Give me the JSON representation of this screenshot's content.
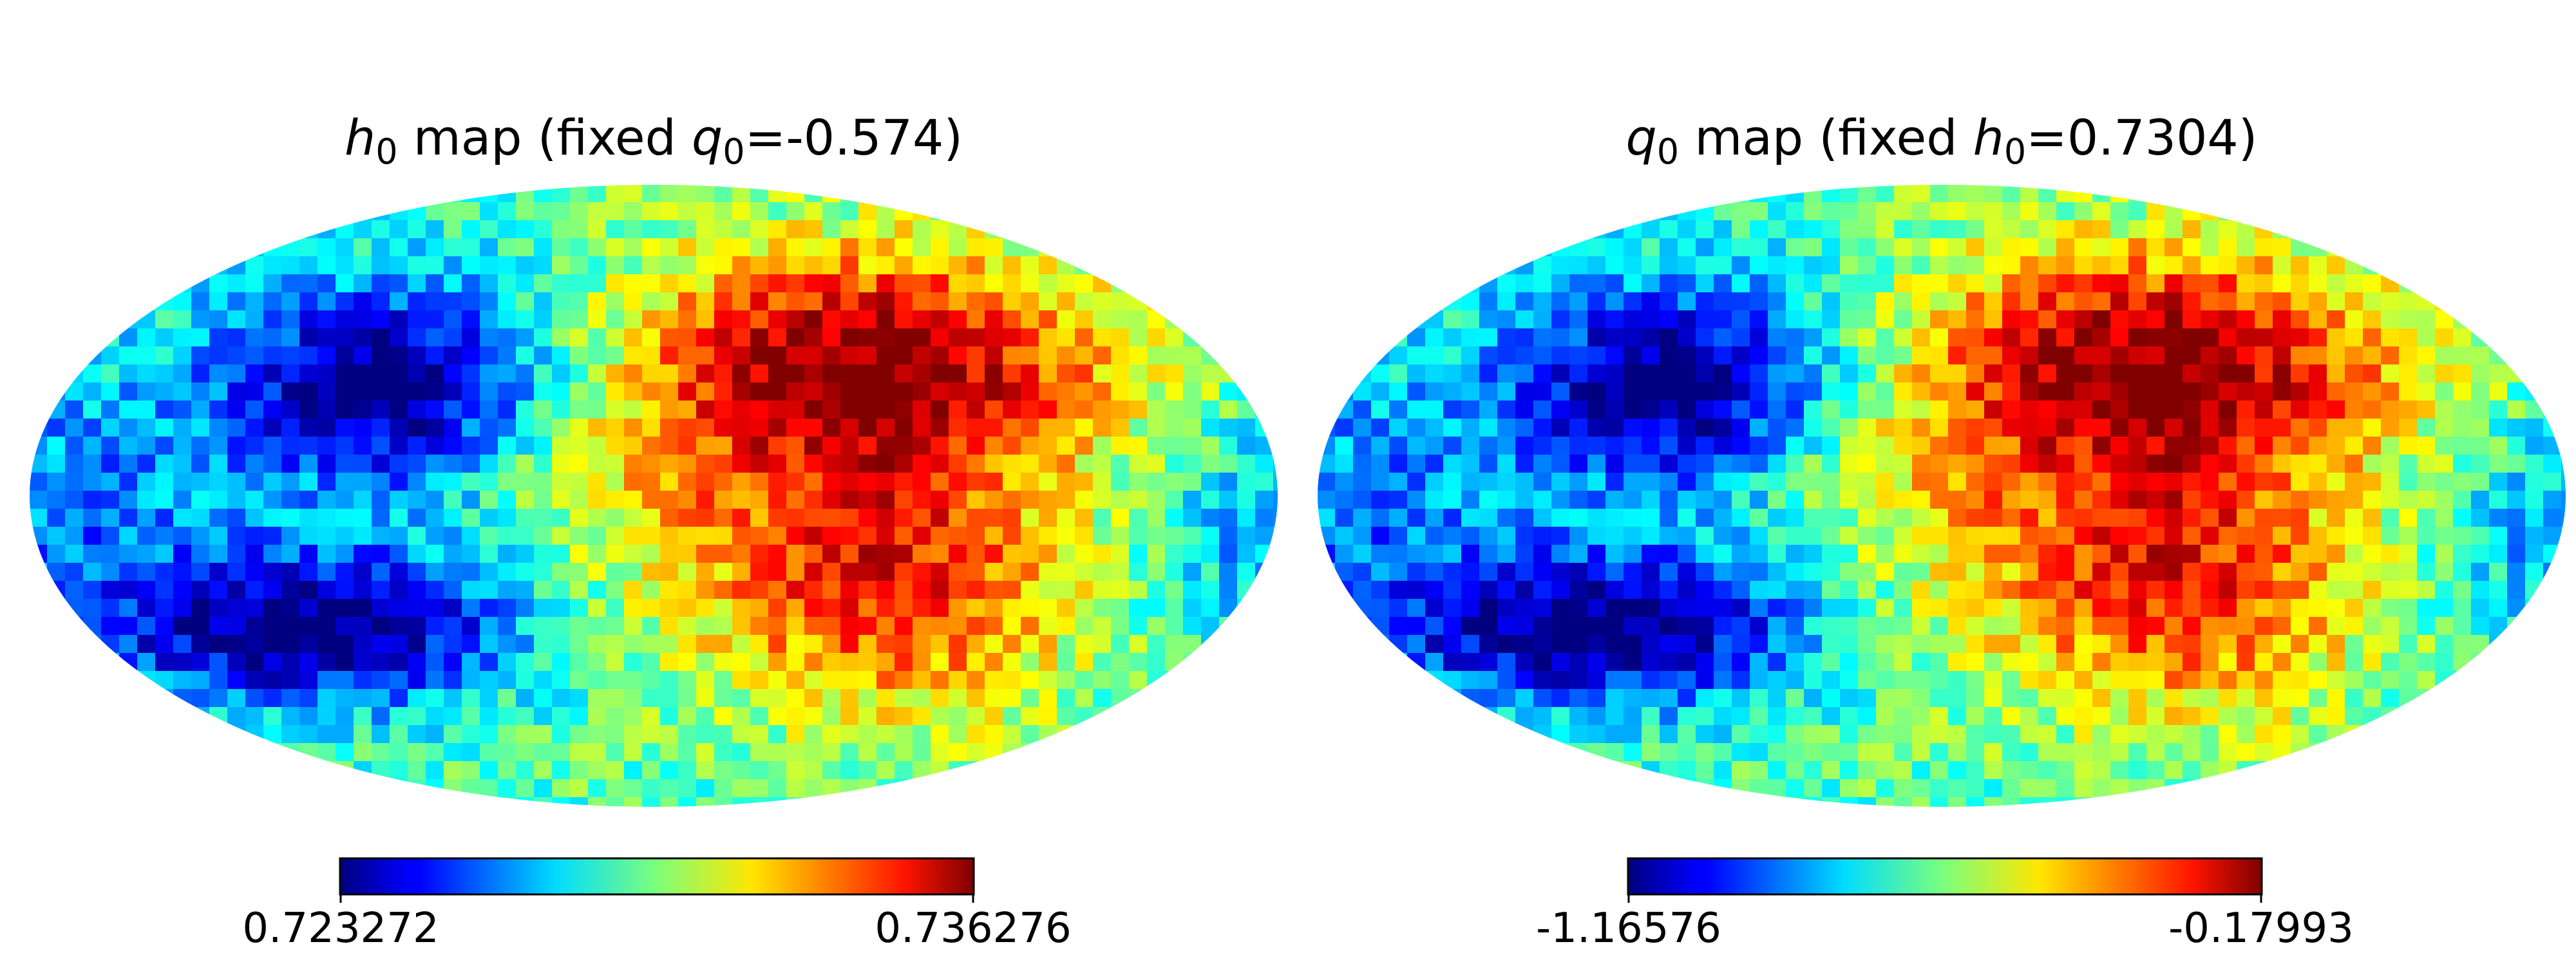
{
  "chart_data": [
    {
      "type": "heatmap",
      "projection": "mollweide",
      "title": {
        "var": "h",
        "sub": "0",
        "mid": " map (fixed ",
        "var2": "q",
        "sub2": "0",
        "tail": "=-0.574)"
      },
      "colormap": "jet",
      "colorbar": {
        "min_label": "0.723272",
        "max_label": "0.736276",
        "min": 0.723272,
        "max": 0.736276
      }
    },
    {
      "type": "heatmap",
      "projection": "mollweide",
      "title": {
        "var": "q",
        "sub": "0",
        "mid": " map (fixed ",
        "var2": "h",
        "sub2": "0",
        "tail": "=0.7304)"
      },
      "colormap": "jet",
      "colorbar": {
        "min_label": "-1.16576",
        "max_label": "-0.17993",
        "min": -1.16576,
        "max": -0.17993
      }
    }
  ]
}
